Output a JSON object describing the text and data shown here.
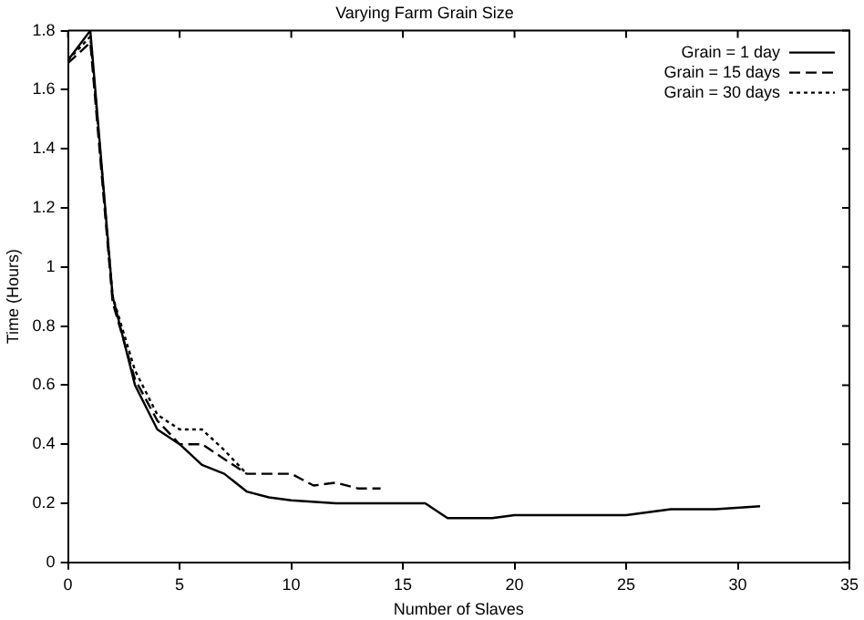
{
  "chart_data": {
    "type": "line",
    "title": "Varying Farm Grain Size",
    "xlabel": "Number of Slaves",
    "ylabel": "Time (Hours)",
    "xlim": [
      0,
      35
    ],
    "xticks": [
      0,
      5,
      10,
      15,
      20,
      25,
      30,
      35
    ],
    "ylim": [
      0,
      1.8
    ],
    "yticks": [
      0,
      0.2,
      0.4,
      0.6,
      0.8,
      1,
      1.2,
      1.4,
      1.6,
      1.8
    ],
    "grid": false,
    "legend": "top right",
    "marker": "none",
    "series": [
      {
        "name": "Grain = 1 day",
        "color": "#000000",
        "line_style": "solid",
        "x": [
          0,
          1,
          2,
          3,
          4,
          5,
          6,
          7,
          8,
          9,
          10,
          12,
          16,
          17,
          19,
          20,
          25,
          27,
          29,
          31
        ],
        "values": [
          1.7,
          1.8,
          0.9,
          0.6,
          0.45,
          0.4,
          0.33,
          0.3,
          0.24,
          0.22,
          0.21,
          0.2,
          0.2,
          0.15,
          0.15,
          0.16,
          0.16,
          0.18,
          0.18,
          0.19
        ]
      },
      {
        "name": "Grain = 15 days",
        "color": "#000000",
        "line_style": "dashed",
        "x": [
          0,
          1,
          2,
          3,
          4,
          5,
          6,
          7,
          8,
          9,
          10,
          11,
          12,
          13,
          14
        ],
        "values": [
          1.69,
          1.76,
          0.88,
          0.62,
          0.48,
          0.4,
          0.4,
          0.35,
          0.3,
          0.3,
          0.3,
          0.26,
          0.27,
          0.25,
          0.25
        ]
      },
      {
        "name": "Grain = 30 days",
        "color": "#000000",
        "line_style": "dotted",
        "x": [
          0,
          1,
          2,
          3,
          4,
          5,
          6,
          7,
          8
        ],
        "values": [
          1.7,
          1.78,
          0.9,
          0.65,
          0.5,
          0.45,
          0.45,
          0.38,
          0.3
        ]
      }
    ]
  }
}
